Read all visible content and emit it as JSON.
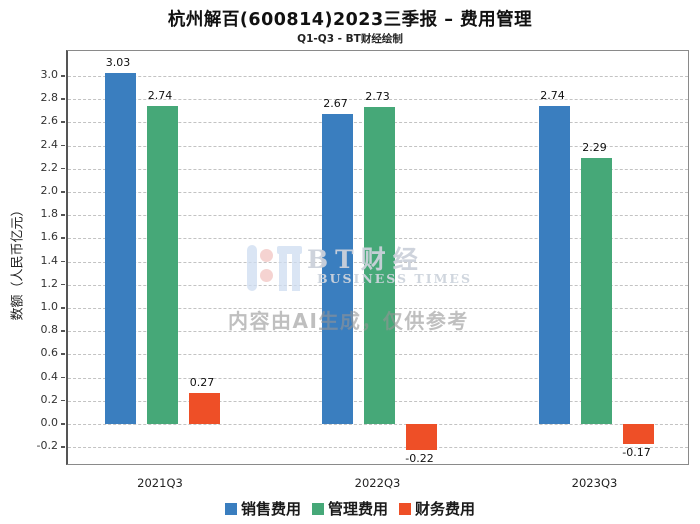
{
  "title": "杭州解百(600814)2023三季报 – 费用管理",
  "subtitle": "Q1-Q3 - BT财经绘制",
  "watermark": {
    "brand": "BT财经",
    "brand_sub": "BUSINESS TIMES",
    "disclaimer": "内容由AI生成，仅供参考"
  },
  "chart_data": {
    "type": "bar",
    "title": "杭州解百(600814)2023三季报 – 费用管理",
    "subtitle": "Q1-Q3 - BT财经绘制",
    "categories": [
      "2021Q3",
      "2022Q3",
      "2023Q3"
    ],
    "series": [
      {
        "name": "销售费用",
        "color": "#3a7ebf",
        "values": [
          3.03,
          2.67,
          2.74
        ]
      },
      {
        "name": "管理费用",
        "color": "#46a878",
        "values": [
          2.74,
          2.73,
          2.29
        ]
      },
      {
        "name": "财务费用",
        "color": "#ee4f27",
        "values": [
          0.27,
          -0.22,
          -0.17
        ]
      }
    ],
    "xlabel": "",
    "ylabel": "数额（人民币亿元）",
    "ylim": [
      -0.36,
      3.22
    ],
    "yticks": [
      3.0,
      2.8,
      2.6,
      2.4,
      2.2,
      2.0,
      1.8,
      1.6,
      1.4,
      1.2,
      1.0,
      0.8,
      0.6,
      0.4,
      0.2,
      0.0,
      -0.2
    ],
    "grid": true,
    "grid_style": "dashed-horizontal",
    "legend_position": "bottom",
    "bar_value_labels": true
  }
}
